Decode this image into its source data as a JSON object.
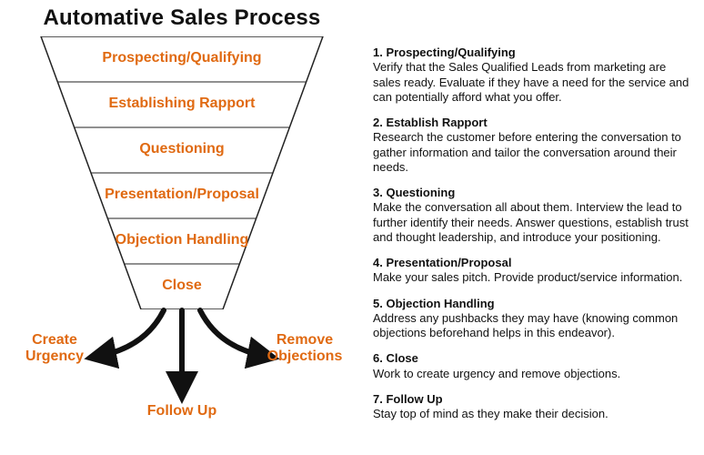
{
  "title": "Automative Sales Process",
  "colors": {
    "accent": "#e06a12",
    "text": "#111111",
    "line": "#222222",
    "background": "#ffffff"
  },
  "funnel": {
    "type": "infographic",
    "outline_color": "#222222",
    "outline_width": 1.5,
    "stage_font_size": 16,
    "stage_font_weight": 700,
    "stage_color": "#e06a12",
    "stages": [
      "Prospecting/Qualifying",
      "Establishing Rapport",
      "Questioning",
      "Presentation/Proposal",
      "Objection Handling",
      "Close"
    ],
    "arrows": {
      "color": "#111111",
      "stroke_width": 6,
      "left_label_lines": [
        "Create",
        "Urgency"
      ],
      "center_label_lines": [
        "Follow Up"
      ],
      "right_label_lines": [
        "Remove",
        "Objections"
      ],
      "label_color": "#e06a12",
      "label_font_size": 16,
      "label_font_weight": 700
    }
  },
  "steps": [
    {
      "head": "1. Prospecting/Qualifying",
      "body": "Verify that the Sales Qualified Leads from marketing are sales ready. Evaluate if they have a need for the service and can potentially afford what you offer."
    },
    {
      "head": "2. Establish Rapport",
      "body": "Research the customer before entering the conversation to gather information and tailor the conversation around their needs."
    },
    {
      "head": "3. Questioning",
      "body": "Make the conversation all about them. Interview the lead to further identify their needs. Answer questions, establish trust and thought leadership, and introduce your positioning."
    },
    {
      "head": "4. Presentation/Proposal",
      "body": "Make your sales pitch. Provide product/service information."
    },
    {
      "head": "5. Objection Handling",
      "body": "Address any pushbacks they may have (knowing common objections beforehand helps in this endeavor)."
    },
    {
      "head": "6. Close",
      "body": "Work to create urgency and remove objections."
    },
    {
      "head": "7. Follow Up",
      "body": "Stay top of mind as they make their decision."
    }
  ],
  "steps_font_size": 13,
  "steps_head_font_weight": 800
}
